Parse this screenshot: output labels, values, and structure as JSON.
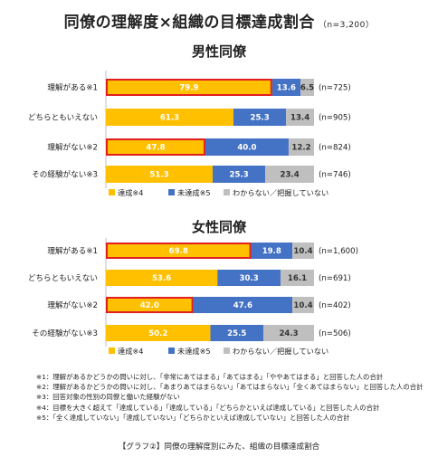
{
  "title": "同僚の理解度×組織の目標達成割合",
  "title_n": "（n=3,200）",
  "colors": {
    "achieved": "#ffc000",
    "not_achieved": "#4472c4",
    "unknown": "#bfbfbf",
    "highlight": "#e02020"
  },
  "chart_data": [
    {
      "type": "bar",
      "orientation": "horizontal",
      "stacked": "percent",
      "title": "男性同僚",
      "categories": [
        "理解がある※1",
        "どちらともいえない",
        "理解がない※2",
        "その経験がない※3"
      ],
      "n_labels": [
        "(n=725)",
        "(n=905)",
        "(n=824)",
        "(n=746)"
      ],
      "series": [
        {
          "name": "達成※4",
          "values": [
            79.9,
            61.3,
            47.8,
            51.3
          ]
        },
        {
          "name": "未達成※5",
          "values": [
            13.6,
            25.3,
            40.0,
            25.3
          ]
        },
        {
          "name": "わからない／把握していない",
          "values": [
            6.5,
            13.4,
            12.2,
            23.4
          ]
        }
      ],
      "highlighted": [
        0,
        2
      ],
      "xlim": [
        0,
        100
      ],
      "legend_position": "bottom"
    },
    {
      "type": "bar",
      "orientation": "horizontal",
      "stacked": "percent",
      "title": "女性同僚",
      "categories": [
        "理解がある※1",
        "どちらともいえない",
        "理解がない※2",
        "その経験がない※3"
      ],
      "n_labels": [
        "(n=1,600)",
        "(n=691)",
        "(n=402)",
        "(n=506)"
      ],
      "series": [
        {
          "name": "達成※4",
          "values": [
            69.8,
            53.6,
            42.0,
            50.2
          ]
        },
        {
          "name": "未達成※5",
          "values": [
            19.8,
            30.3,
            47.6,
            25.5
          ]
        },
        {
          "name": "わからない／把握していない",
          "values": [
            10.4,
            16.1,
            10.4,
            24.3
          ]
        }
      ],
      "highlighted": [
        0,
        2
      ],
      "xlim": [
        0,
        100
      ],
      "legend_position": "bottom"
    }
  ],
  "notes": [
    "※1：理解があるかどうかの問いに対し、「非常にあてはまる」「あてはまる」「ややあてはまる」と回答した人の合計",
    "※2：理解があるかどうかの問いに対し、「あまりあてはまらない」「あてはまらない」「全くあてはまらない」と回答した人の合計",
    "※3：回答対象の性別の同僚と働いた経験がない",
    "※4：目標を大きく超えて「達成している」「達成している」「どちらかといえば達成している」と回答した人の合計",
    "※5：「全く達成していない」「達成していない」「どちらかといえば達成していない」と回答した人の合計"
  ],
  "caption": "【グラフ②】同僚の理解度別にみた、組織の目標達成割合"
}
